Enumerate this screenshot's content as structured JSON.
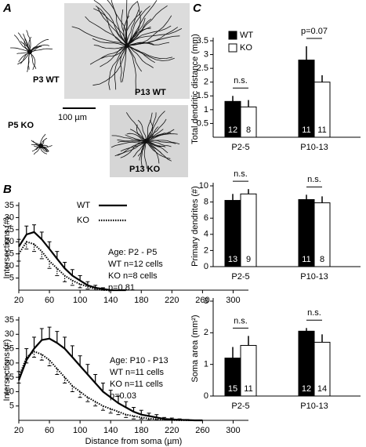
{
  "panel_labels": [
    "A",
    "B",
    "C"
  ],
  "panel_a": {
    "images": [
      {
        "label": "P3 WT"
      },
      {
        "label": "P13 WT"
      },
      {
        "label": "P5 KO"
      },
      {
        "label": "P13 KO"
      }
    ],
    "scale_bar": "100 µm"
  },
  "chart_data": [
    {
      "type": "line",
      "y_label": "Intersections (#)",
      "x": [
        20,
        30,
        40,
        50,
        60,
        70,
        80,
        90,
        100,
        110,
        120,
        130,
        140,
        150,
        160
      ],
      "series": [
        {
          "name": "WT",
          "color": "#000000",
          "style": "solid",
          "error_direction": "up",
          "values": [
            18,
            23,
            24,
            21,
            17,
            13,
            9,
            6,
            4,
            2,
            1,
            0.5,
            0,
            0,
            0
          ],
          "errors": [
            3,
            3.5,
            3,
            3,
            3,
            3,
            2.5,
            2.5,
            2,
            1.5,
            1,
            0.5,
            0,
            0,
            0
          ]
        },
        {
          "name": "KO",
          "color": "#000000",
          "style": "dotted",
          "error_direction": "down",
          "values": [
            15,
            20,
            19,
            16,
            12,
            9,
            6,
            4,
            2.5,
            1.5,
            0.5,
            0,
            0,
            0,
            0
          ],
          "errors": [
            3,
            3,
            3,
            3,
            3,
            3,
            2.5,
            2,
            1.5,
            1,
            0.5,
            0,
            0,
            0,
            0
          ]
        }
      ],
      "xlim": [
        20,
        320
      ],
      "ylim": [
        0,
        35
      ],
      "xticks": [
        20,
        60,
        100,
        140,
        180,
        220,
        260,
        300
      ],
      "yticks": [
        5,
        10,
        15,
        20,
        25,
        30,
        35
      ],
      "annotations": [
        "Age: P2 - P5",
        "WT n=12 cells",
        "KO n=8 cells",
        "p=0.81"
      ],
      "legend": true
    },
    {
      "type": "line",
      "y_label": "Intersections (#)",
      "x_label": "Distance from soma (µm)",
      "x": [
        20,
        30,
        40,
        50,
        60,
        70,
        80,
        90,
        100,
        110,
        120,
        130,
        140,
        150,
        160,
        170,
        180,
        190,
        200,
        210,
        220,
        230,
        240,
        250,
        260
      ],
      "series": [
        {
          "name": "WT",
          "color": "#000000",
          "style": "solid",
          "error_direction": "up",
          "values": [
            14,
            21,
            25,
            28,
            28.5,
            27,
            25,
            22,
            19,
            16,
            13,
            10,
            8,
            6,
            4.5,
            3,
            2,
            1.5,
            1,
            0.5,
            0.3,
            0.2,
            0.1,
            0,
            0
          ],
          "errors": [
            3,
            4,
            4,
            4,
            4,
            4,
            4,
            4,
            3.5,
            3.5,
            3,
            3,
            2.5,
            2.5,
            2,
            1.5,
            1.5,
            1,
            1,
            0.5,
            0.5,
            0.3,
            0.2,
            0,
            0
          ]
        },
        {
          "name": "KO",
          "color": "#000000",
          "style": "dotted",
          "error_direction": "down",
          "values": [
            15,
            22,
            24,
            23,
            21,
            18,
            15,
            12,
            10,
            8,
            6.5,
            5,
            4,
            3,
            2,
            1.5,
            1,
            0.6,
            0.4,
            0.2,
            0.1,
            0,
            0,
            0,
            0
          ],
          "errors": [
            2,
            2,
            2,
            2,
            2,
            2,
            2,
            2,
            2,
            1.5,
            1.5,
            1.5,
            1.5,
            1,
            1,
            1,
            0.5,
            0.5,
            0.3,
            0.2,
            0.1,
            0,
            0,
            0,
            0
          ]
        }
      ],
      "xlim": [
        20,
        320
      ],
      "ylim": [
        0,
        35
      ],
      "xticks": [
        20,
        60,
        100,
        140,
        180,
        220,
        260,
        300
      ],
      "yticks": [
        5,
        10,
        15,
        20,
        25,
        30,
        35
      ],
      "annotations": [
        "Age: P10 - P13",
        "WT n=11 cells",
        "KO n=11 cells",
        "p=0.03"
      ],
      "legend": false
    },
    {
      "type": "bar",
      "y_label": "Total dendritic distance (mm)",
      "categories": [
        "P2-5",
        "P10-13"
      ],
      "series": [
        {
          "name": "WT",
          "color": "#000000",
          "values": [
            1.3,
            2.8
          ],
          "errors": [
            0.2,
            0.5
          ],
          "n_labels": [
            "12",
            "11"
          ]
        },
        {
          "name": "KO",
          "color": "#ffffff",
          "values": [
            1.1,
            2.0
          ],
          "errors": [
            0.25,
            0.25
          ],
          "n_labels": [
            "8",
            "11"
          ]
        }
      ],
      "ylim": [
        0,
        3.5
      ],
      "yticks": [
        0.5,
        1,
        1.5,
        2,
        2.5,
        3,
        3.5
      ],
      "significance": [
        "n.s.",
        "p=0.07"
      ],
      "legend": true
    },
    {
      "type": "bar",
      "y_label": "Primary dendrites (#)",
      "categories": [
        "P2-5",
        "P10-13"
      ],
      "series": [
        {
          "name": "WT",
          "color": "#000000",
          "values": [
            8.2,
            8.3
          ],
          "errors": [
            0.8,
            0.6
          ],
          "n_labels": [
            "13",
            "11"
          ]
        },
        {
          "name": "KO",
          "color": "#ffffff",
          "values": [
            9.0,
            7.9
          ],
          "errors": [
            0.6,
            0.8
          ],
          "n_labels": [
            "9",
            "8"
          ]
        }
      ],
      "ylim": [
        0,
        10
      ],
      "yticks": [
        0,
        2,
        4,
        6,
        8,
        10
      ],
      "significance": [
        "n.s.",
        "n.s."
      ],
      "legend": false
    },
    {
      "type": "bar",
      "y_label": "Soma area (mm²)",
      "categories": [
        "P2-5",
        "P10-13"
      ],
      "series": [
        {
          "name": "WT",
          "color": "#000000",
          "values": [
            1.2,
            2.05
          ],
          "errors": [
            0.35,
            0.1
          ],
          "n_labels": [
            "15",
            "12"
          ]
        },
        {
          "name": "KO",
          "color": "#ffffff",
          "values": [
            1.6,
            1.7
          ],
          "errors": [
            0.3,
            0.25
          ],
          "n_labels": [
            "11",
            "14"
          ]
        }
      ],
      "ylim": [
        0,
        3
      ],
      "yticks": [
        0,
        1,
        2,
        3
      ],
      "significance": [
        "n.s.",
        "n.s."
      ],
      "legend": false
    }
  ]
}
